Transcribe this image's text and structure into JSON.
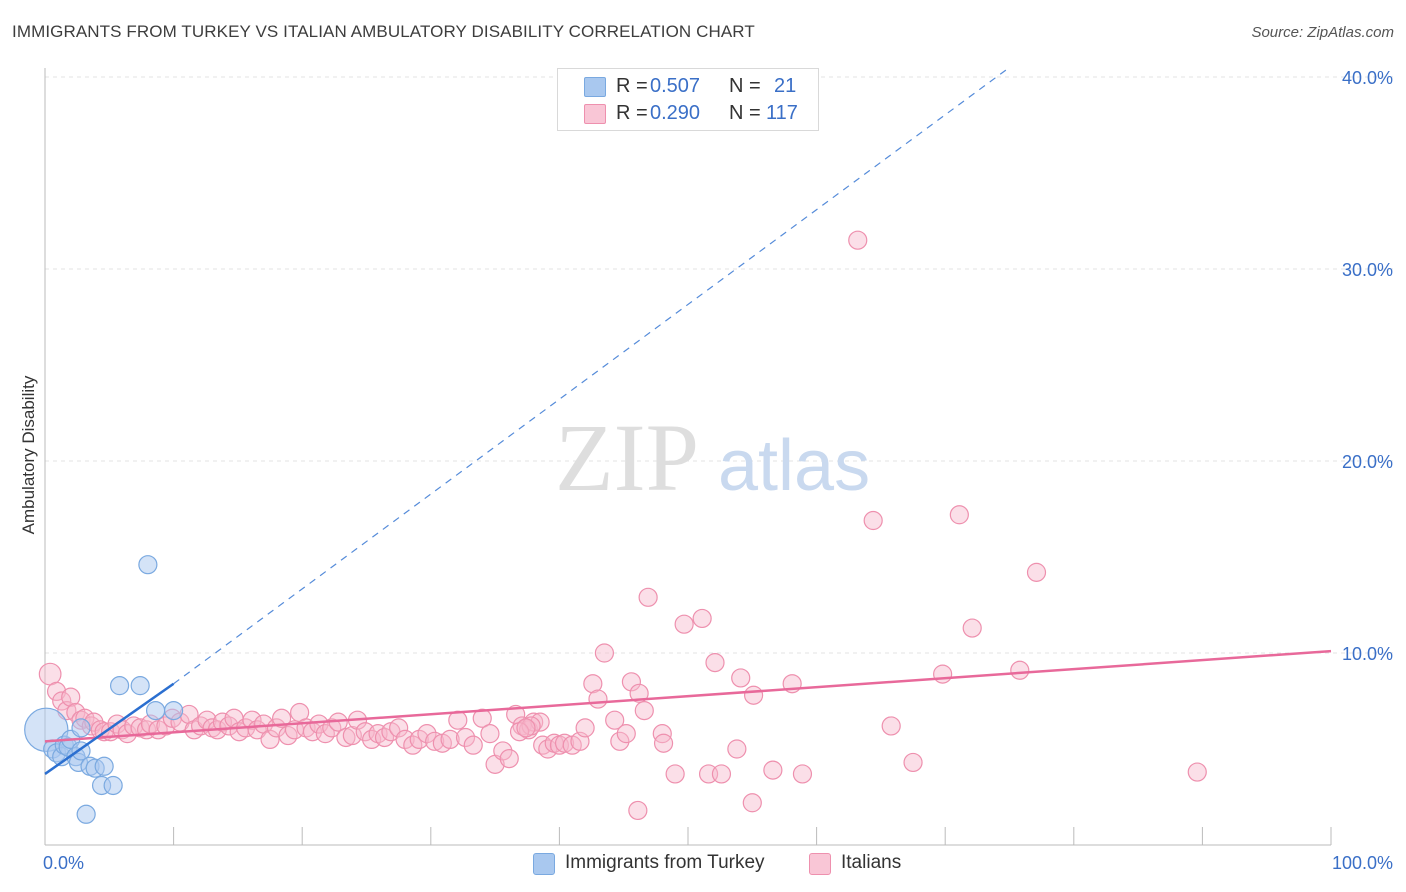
{
  "title": "IMMIGRANTS FROM TURKEY VS ITALIAN AMBULATORY DISABILITY CORRELATION CHART",
  "source": "Source: ZipAtlas.com",
  "watermark": {
    "zip": "ZIP",
    "atlas": "atlas"
  },
  "colors": {
    "blue_fill": "#a9c8ef",
    "blue_stroke": "#7aa9e0",
    "blue_line": "#2b6fd0",
    "pink_fill": "#f6b8cb",
    "pink_stroke": "#ee90ae",
    "pink_line": "#e8699a",
    "value_text": "#3a6fc7",
    "grid": "#e3e3e3"
  },
  "legend": {
    "rows": [
      {
        "r_label": "R =",
        "r_value": "0.507",
        "n_label": "N =",
        "n_value": "21"
      },
      {
        "r_label": "R =",
        "r_value": "0.290",
        "n_label": "N =",
        "n_value": "117"
      }
    ]
  },
  "bottom_legend": [
    "Immigrants from Turkey",
    "Italians"
  ],
  "chart_data": {
    "type": "scatter",
    "title": "IMMIGRANTS FROM TURKEY VS ITALIAN AMBULATORY DISABILITY CORRELATION CHART",
    "ylabel": "Ambulatory Disability",
    "xlabel": "",
    "xlim": [
      0,
      100
    ],
    "ylim": [
      0,
      42
    ],
    "x_tick_labels": [
      "0.0%",
      "100.0%"
    ],
    "y_ticks": [
      10,
      20,
      30,
      40
    ],
    "y_tick_labels": [
      "10.0%",
      "20.0%",
      "30.0%",
      "40.0%"
    ],
    "grid": true,
    "legend_position": "top-center",
    "series": [
      {
        "name": "Immigrants from Turkey",
        "r": 0.507,
        "n": 21,
        "trend": {
          "x": [
            0,
            10
          ],
          "y": [
            3.7,
            8.4
          ]
        },
        "trend_dashed_extension": {
          "x": [
            10,
            75
          ],
          "y": [
            8.4,
            40.5
          ]
        },
        "points": [
          {
            "x": 0.1,
            "y": 6.0,
            "s": 2.4
          },
          {
            "x": 0.6,
            "y": 5.0,
            "s": 1
          },
          {
            "x": 0.9,
            "y": 4.8,
            "s": 1
          },
          {
            "x": 1.3,
            "y": 4.6,
            "s": 1
          },
          {
            "x": 1.5,
            "y": 5.2,
            "s": 1
          },
          {
            "x": 1.8,
            "y": 5.1,
            "s": 1
          },
          {
            "x": 2.0,
            "y": 5.5,
            "s": 1
          },
          {
            "x": 2.4,
            "y": 4.6,
            "s": 1
          },
          {
            "x": 2.6,
            "y": 4.3,
            "s": 1
          },
          {
            "x": 2.8,
            "y": 6.1,
            "s": 1
          },
          {
            "x": 2.8,
            "y": 4.9,
            "s": 1
          },
          {
            "x": 3.2,
            "y": 1.6,
            "s": 1
          },
          {
            "x": 3.5,
            "y": 4.1,
            "s": 1
          },
          {
            "x": 3.9,
            "y": 4.0,
            "s": 1
          },
          {
            "x": 4.4,
            "y": 3.1,
            "s": 1
          },
          {
            "x": 4.6,
            "y": 4.1,
            "s": 1
          },
          {
            "x": 5.3,
            "y": 3.1,
            "s": 1
          },
          {
            "x": 5.8,
            "y": 8.3,
            "s": 1
          },
          {
            "x": 7.4,
            "y": 8.3,
            "s": 1
          },
          {
            "x": 8.0,
            "y": 14.6,
            "s": 1
          },
          {
            "x": 8.6,
            "y": 7.0,
            "s": 1
          },
          {
            "x": 10.0,
            "y": 7.0,
            "s": 1
          }
        ]
      },
      {
        "name": "Italians",
        "r": 0.29,
        "n": 117,
        "trend": {
          "x": [
            0,
            100
          ],
          "y": [
            5.4,
            10.1
          ]
        },
        "points": [
          {
            "x": 0.4,
            "y": 8.9,
            "s": 1.2
          },
          {
            "x": 0.9,
            "y": 8.0,
            "s": 1
          },
          {
            "x": 1.3,
            "y": 7.5,
            "s": 1
          },
          {
            "x": 1.7,
            "y": 7.0,
            "s": 1
          },
          {
            "x": 2.0,
            "y": 7.7,
            "s": 1
          },
          {
            "x": 2.4,
            "y": 6.9,
            "s": 1
          },
          {
            "x": 2.8,
            "y": 6.5,
            "s": 1
          },
          {
            "x": 3.1,
            "y": 6.6,
            "s": 1
          },
          {
            "x": 3.6,
            "y": 6.2,
            "s": 1
          },
          {
            "x": 3.8,
            "y": 6.4,
            "s": 1
          },
          {
            "x": 4.3,
            "y": 6.0,
            "s": 1
          },
          {
            "x": 4.6,
            "y": 5.9,
            "s": 1
          },
          {
            "x": 5.1,
            "y": 5.9,
            "s": 1
          },
          {
            "x": 5.6,
            "y": 6.3,
            "s": 1
          },
          {
            "x": 6.0,
            "y": 6.0,
            "s": 1
          },
          {
            "x": 6.4,
            "y": 5.8,
            "s": 1
          },
          {
            "x": 6.9,
            "y": 6.2,
            "s": 1
          },
          {
            "x": 7.4,
            "y": 6.1,
            "s": 1
          },
          {
            "x": 7.9,
            "y": 6.0,
            "s": 1
          },
          {
            "x": 8.2,
            "y": 6.3,
            "s": 1
          },
          {
            "x": 8.8,
            "y": 6.0,
            "s": 1
          },
          {
            "x": 9.4,
            "y": 6.2,
            "s": 1
          },
          {
            "x": 9.9,
            "y": 6.6,
            "s": 1
          },
          {
            "x": 10.5,
            "y": 6.4,
            "s": 1
          },
          {
            "x": 11.2,
            "y": 6.8,
            "s": 1
          },
          {
            "x": 11.6,
            "y": 6.0,
            "s": 1
          },
          {
            "x": 12.1,
            "y": 6.2,
            "s": 1
          },
          {
            "x": 12.6,
            "y": 6.5,
            "s": 1
          },
          {
            "x": 13.0,
            "y": 6.1,
            "s": 1
          },
          {
            "x": 13.4,
            "y": 6.0,
            "s": 1
          },
          {
            "x": 13.8,
            "y": 6.4,
            "s": 1
          },
          {
            "x": 14.3,
            "y": 6.2,
            "s": 1
          },
          {
            "x": 14.7,
            "y": 6.6,
            "s": 1
          },
          {
            "x": 15.1,
            "y": 5.9,
            "s": 1
          },
          {
            "x": 15.6,
            "y": 6.1,
            "s": 1
          },
          {
            "x": 16.1,
            "y": 6.5,
            "s": 1
          },
          {
            "x": 16.5,
            "y": 6.0,
            "s": 1
          },
          {
            "x": 17.0,
            "y": 6.3,
            "s": 1
          },
          {
            "x": 17.5,
            "y": 5.5,
            "s": 1
          },
          {
            "x": 18.0,
            "y": 6.1,
            "s": 1
          },
          {
            "x": 18.4,
            "y": 6.6,
            "s": 1
          },
          {
            "x": 18.9,
            "y": 5.7,
            "s": 1
          },
          {
            "x": 19.4,
            "y": 6.0,
            "s": 1
          },
          {
            "x": 19.8,
            "y": 6.9,
            "s": 1
          },
          {
            "x": 20.3,
            "y": 6.1,
            "s": 1
          },
          {
            "x": 20.8,
            "y": 5.9,
            "s": 1
          },
          {
            "x": 21.3,
            "y": 6.3,
            "s": 1
          },
          {
            "x": 21.8,
            "y": 5.8,
            "s": 1
          },
          {
            "x": 22.3,
            "y": 6.1,
            "s": 1
          },
          {
            "x": 22.8,
            "y": 6.4,
            "s": 1
          },
          {
            "x": 23.4,
            "y": 5.6,
            "s": 1
          },
          {
            "x": 23.9,
            "y": 5.7,
            "s": 1
          },
          {
            "x": 24.3,
            "y": 6.5,
            "s": 1
          },
          {
            "x": 24.9,
            "y": 5.9,
            "s": 1
          },
          {
            "x": 25.4,
            "y": 5.5,
            "s": 1
          },
          {
            "x": 25.9,
            "y": 5.8,
            "s": 1
          },
          {
            "x": 26.4,
            "y": 5.6,
            "s": 1
          },
          {
            "x": 26.9,
            "y": 5.9,
            "s": 1
          },
          {
            "x": 27.5,
            "y": 6.1,
            "s": 1
          },
          {
            "x": 28.0,
            "y": 5.5,
            "s": 1
          },
          {
            "x": 28.6,
            "y": 5.2,
            "s": 1
          },
          {
            "x": 29.1,
            "y": 5.5,
            "s": 1
          },
          {
            "x": 29.7,
            "y": 5.8,
            "s": 1
          },
          {
            "x": 30.3,
            "y": 5.4,
            "s": 1
          },
          {
            "x": 30.9,
            "y": 5.3,
            "s": 1
          },
          {
            "x": 31.5,
            "y": 5.5,
            "s": 1
          },
          {
            "x": 32.1,
            "y": 6.5,
            "s": 1
          },
          {
            "x": 32.7,
            "y": 5.6,
            "s": 1
          },
          {
            "x": 33.3,
            "y": 5.2,
            "s": 1
          },
          {
            "x": 34.0,
            "y": 6.6,
            "s": 1
          },
          {
            "x": 34.6,
            "y": 5.8,
            "s": 1
          },
          {
            "x": 35.0,
            "y": 4.2,
            "s": 1
          },
          {
            "x": 35.6,
            "y": 4.9,
            "s": 1
          },
          {
            "x": 36.1,
            "y": 4.5,
            "s": 1
          },
          {
            "x": 36.6,
            "y": 6.8,
            "s": 1
          },
          {
            "x": 37.1,
            "y": 6.2,
            "s": 1
          },
          {
            "x": 37.6,
            "y": 6.0,
            "s": 1
          },
          {
            "x": 38.0,
            "y": 6.4,
            "s": 1
          },
          {
            "x": 38.5,
            "y": 6.4,
            "s": 1
          },
          {
            "x": 37.8,
            "y": 6.2,
            "s": 1
          },
          {
            "x": 36.9,
            "y": 5.9,
            "s": 1
          },
          {
            "x": 37.4,
            "y": 6.1,
            "s": 1
          },
          {
            "x": 38.7,
            "y": 5.2,
            "s": 1
          },
          {
            "x": 39.1,
            "y": 5.0,
            "s": 1
          },
          {
            "x": 39.6,
            "y": 5.3,
            "s": 1
          },
          {
            "x": 40.0,
            "y": 5.2,
            "s": 1
          },
          {
            "x": 40.4,
            "y": 5.3,
            "s": 1
          },
          {
            "x": 41.0,
            "y": 5.2,
            "s": 1
          },
          {
            "x": 41.6,
            "y": 5.4,
            "s": 1
          },
          {
            "x": 42.0,
            "y": 6.1,
            "s": 1
          },
          {
            "x": 42.6,
            "y": 8.4,
            "s": 1
          },
          {
            "x": 43.0,
            "y": 7.6,
            "s": 1
          },
          {
            "x": 43.5,
            "y": 10.0,
            "s": 1
          },
          {
            "x": 44.3,
            "y": 6.5,
            "s": 1
          },
          {
            "x": 44.7,
            "y": 5.4,
            "s": 1
          },
          {
            "x": 45.2,
            "y": 5.8,
            "s": 1
          },
          {
            "x": 45.6,
            "y": 8.5,
            "s": 1
          },
          {
            "x": 46.2,
            "y": 7.9,
            "s": 1
          },
          {
            "x": 46.6,
            "y": 7.0,
            "s": 1
          },
          {
            "x": 46.1,
            "y": 1.8,
            "s": 1
          },
          {
            "x": 46.9,
            "y": 12.9,
            "s": 1
          },
          {
            "x": 48.0,
            "y": 5.8,
            "s": 1
          },
          {
            "x": 48.1,
            "y": 5.3,
            "s": 1
          },
          {
            "x": 49.0,
            "y": 3.7,
            "s": 1
          },
          {
            "x": 49.7,
            "y": 11.5,
            "s": 1
          },
          {
            "x": 51.1,
            "y": 11.8,
            "s": 1
          },
          {
            "x": 51.6,
            "y": 3.7,
            "s": 1
          },
          {
            "x": 52.1,
            "y": 9.5,
            "s": 1
          },
          {
            "x": 52.6,
            "y": 3.7,
            "s": 1
          },
          {
            "x": 53.8,
            "y": 5.0,
            "s": 1
          },
          {
            "x": 54.1,
            "y": 8.7,
            "s": 1
          },
          {
            "x": 55.1,
            "y": 7.8,
            "s": 1
          },
          {
            "x": 56.6,
            "y": 3.9,
            "s": 1
          },
          {
            "x": 58.1,
            "y": 8.4,
            "s": 1
          },
          {
            "x": 58.9,
            "y": 3.7,
            "s": 1
          },
          {
            "x": 65.8,
            "y": 6.2,
            "s": 1
          },
          {
            "x": 63.2,
            "y": 31.5,
            "s": 1
          },
          {
            "x": 64.4,
            "y": 16.9,
            "s": 1
          },
          {
            "x": 67.5,
            "y": 4.3,
            "s": 1
          },
          {
            "x": 69.8,
            "y": 8.9,
            "s": 1
          },
          {
            "x": 71.1,
            "y": 17.2,
            "s": 1
          },
          {
            "x": 72.1,
            "y": 11.3,
            "s": 1
          },
          {
            "x": 75.8,
            "y": 9.1,
            "s": 1
          },
          {
            "x": 77.1,
            "y": 14.2,
            "s": 1
          },
          {
            "x": 89.6,
            "y": 3.8,
            "s": 1
          },
          {
            "x": 55.0,
            "y": 2.2,
            "s": 1
          }
        ]
      }
    ]
  }
}
